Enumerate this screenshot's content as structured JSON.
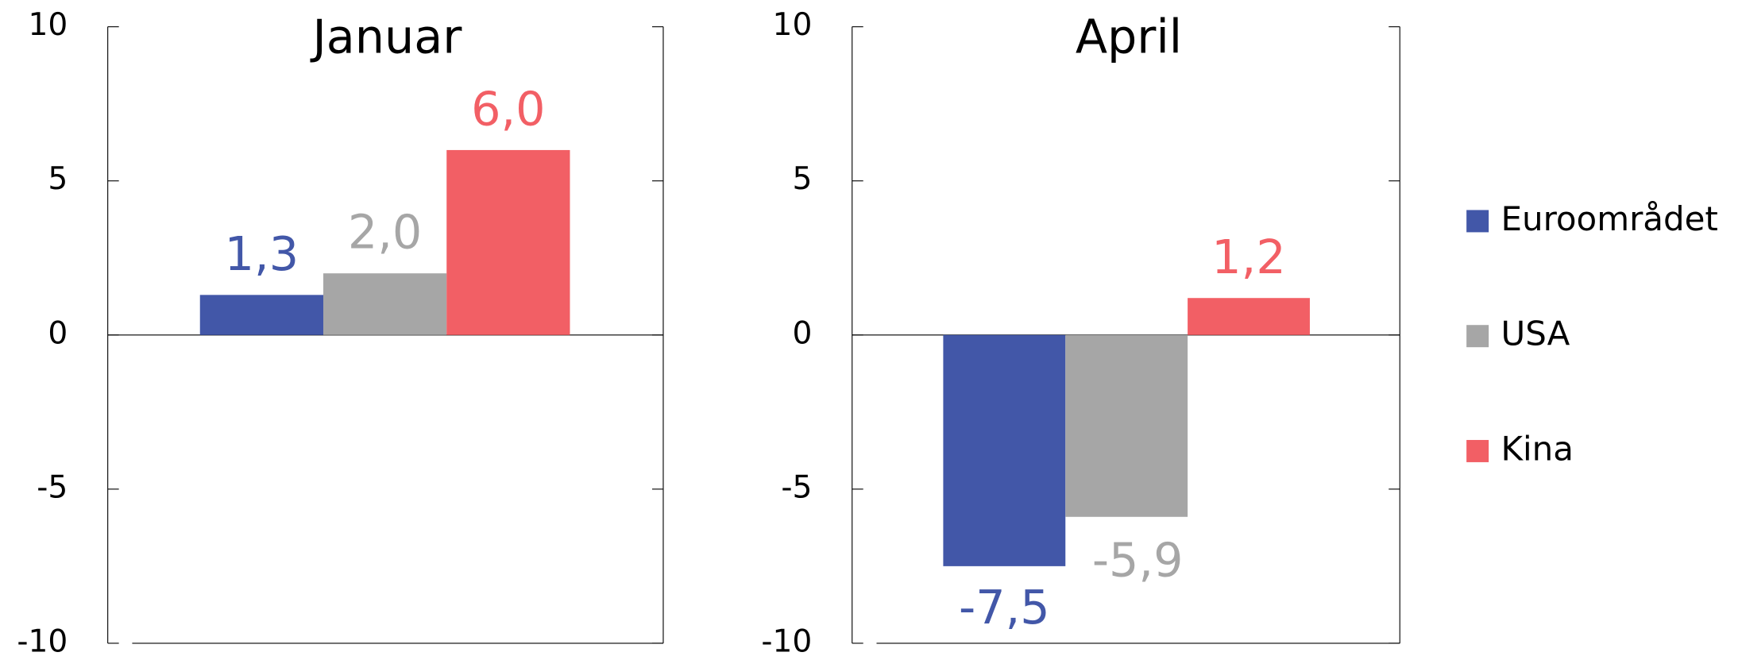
{
  "chart_data": {
    "type": "bar",
    "categories": [
      "Januar",
      "April"
    ],
    "series": [
      {
        "name": "Euroområdet",
        "color": "#4257a8",
        "values": [
          1.3,
          -7.5
        ],
        "value_labels": [
          "1,3",
          "-7,5"
        ]
      },
      {
        "name": "USA",
        "color": "#a6a6a6",
        "values": [
          2.0,
          -5.9
        ],
        "value_labels": [
          "2,0",
          "-5,9"
        ]
      },
      {
        "name": "Kina",
        "color": "#f25f65",
        "values": [
          6.0,
          1.2
        ],
        "value_labels": [
          "6,0",
          "1,2"
        ]
      }
    ],
    "ylim": [
      -10,
      10
    ],
    "yticks": [
      -10,
      -5,
      0,
      5,
      10
    ],
    "legend": "right"
  }
}
